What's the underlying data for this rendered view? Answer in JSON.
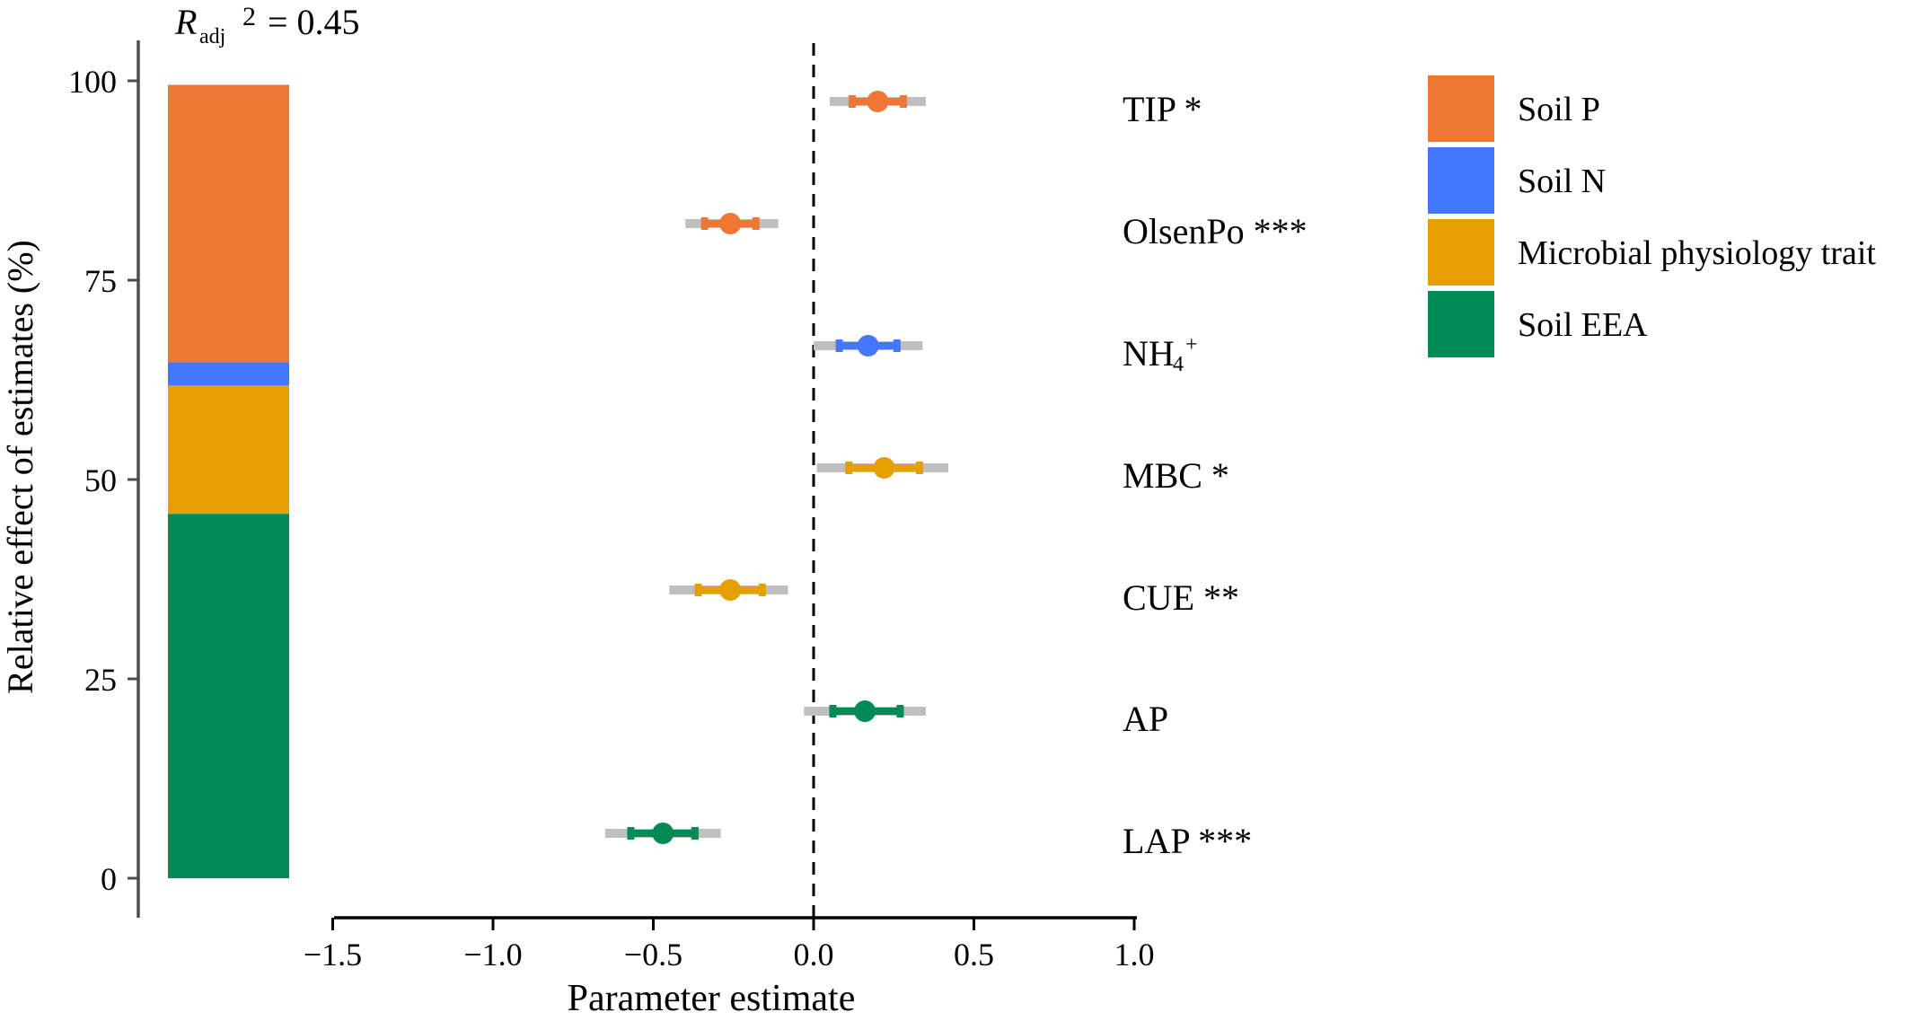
{
  "r2": {
    "symbol": "R",
    "sub": "adj",
    "sup": "2",
    "eq": "= 0.45"
  },
  "chart_data": [
    {
      "type": "bar",
      "stacked": true,
      "ylabel": "Relative effect of estimates (%)",
      "ylim": [
        0,
        100
      ],
      "yticks": [
        0,
        25,
        50,
        75,
        100
      ],
      "series": [
        {
          "name": "Soil EEA",
          "value": 45.7,
          "color": "#008B55"
        },
        {
          "name": "Microbial physiology trait",
          "value": 16.1,
          "color": "#E69F00"
        },
        {
          "name": "Soil N",
          "value": 2.9,
          "color": "#4477FF"
        },
        {
          "name": "Soil P",
          "value": 34.8,
          "color": "#EE7733"
        }
      ]
    },
    {
      "type": "scatter",
      "subtype": "coefficient-plot",
      "xlabel": "Parameter estimate",
      "xlim": [
        -1.5,
        1.0
      ],
      "xticks": [
        "−1.5",
        "−1.0",
        "−0.5",
        "0.0",
        "0.5",
        "1.0"
      ],
      "xtick_values": [
        -1.5,
        -1.0,
        -0.5,
        0.0,
        0.5,
        1.0
      ],
      "reference_line": 0,
      "points": [
        {
          "label": "TIP *",
          "group": "Soil P",
          "estimate": 0.2,
          "ci_inner": [
            0.12,
            0.28
          ],
          "ci_outer": [
            0.05,
            0.35
          ]
        },
        {
          "label": "OlsenPo ***",
          "group": "Soil P",
          "estimate": -0.26,
          "ci_inner": [
            -0.34,
            -0.18
          ],
          "ci_outer": [
            -0.4,
            -0.11
          ]
        },
        {
          "label_base": "NH",
          "label_sub": "4",
          "label_sup": "+",
          "group": "Soil N",
          "estimate": 0.17,
          "ci_inner": [
            0.08,
            0.26
          ],
          "ci_outer": [
            0.0,
            0.34
          ]
        },
        {
          "label": "MBC *",
          "group": "Microbial physiology trait",
          "estimate": 0.22,
          "ci_inner": [
            0.11,
            0.33
          ],
          "ci_outer": [
            0.01,
            0.42
          ]
        },
        {
          "label": "CUE **",
          "group": "Microbial physiology trait",
          "estimate": -0.26,
          "ci_inner": [
            -0.36,
            -0.16
          ],
          "ci_outer": [
            -0.45,
            -0.08
          ]
        },
        {
          "label": "AP",
          "group": "Soil EEA",
          "estimate": 0.16,
          "ci_inner": [
            0.06,
            0.27
          ],
          "ci_outer": [
            -0.03,
            0.35
          ]
        },
        {
          "label": "LAP ***",
          "group": "Soil EEA",
          "estimate": -0.47,
          "ci_inner": [
            -0.57,
            -0.37
          ],
          "ci_outer": [
            -0.65,
            -0.29
          ]
        }
      ]
    }
  ],
  "legend": {
    "position": "right",
    "items": [
      {
        "name": "Soil P",
        "color": "#EE7733"
      },
      {
        "name": "Soil N",
        "color": "#4477FF"
      },
      {
        "name": "Microbial physiology trait",
        "color": "#E69F00"
      },
      {
        "name": "Soil EEA",
        "color": "#008B55"
      }
    ]
  },
  "colors": {
    "ci_outer": "#BFBFBF",
    "axis": "#000000"
  }
}
